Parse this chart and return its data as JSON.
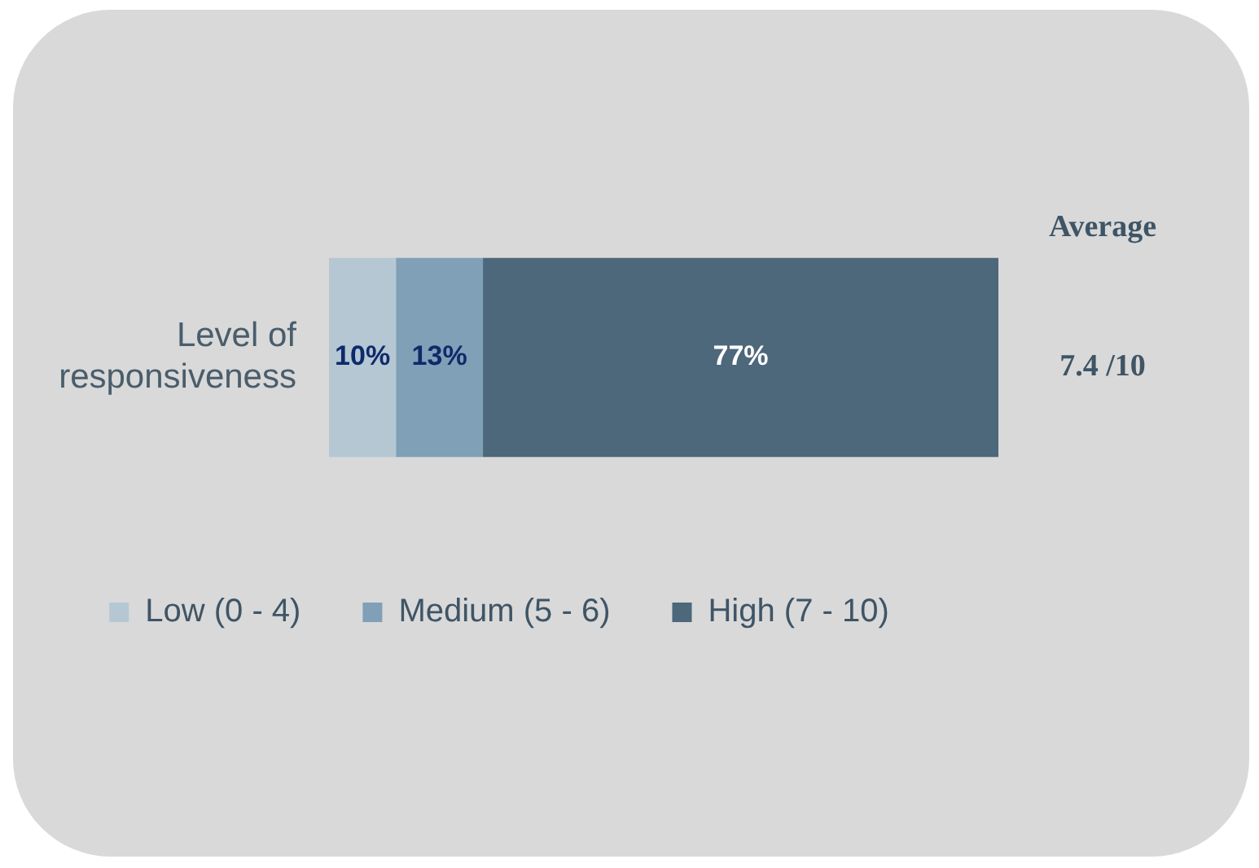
{
  "chart_data": {
    "type": "bar",
    "orientation": "horizontal",
    "stacked": true,
    "categories": [
      "Level of responsiveness"
    ],
    "series": [
      {
        "name": "Low (0 - 4)",
        "color": "#b4c7d3",
        "values": [
          10
        ],
        "value_labels": [
          "10%"
        ]
      },
      {
        "name": "Medium (5 - 6)",
        "color": "#7fa0b6",
        "values": [
          13
        ],
        "value_labels": [
          "13%"
        ]
      },
      {
        "name": "High (7 - 10)",
        "color": "#4d677b",
        "values": [
          77
        ],
        "value_labels": [
          "77%"
        ]
      }
    ],
    "annotations": [
      "Average",
      "7.4 /10"
    ],
    "legend": "bottom",
    "tick_labels": "y"
  }
}
